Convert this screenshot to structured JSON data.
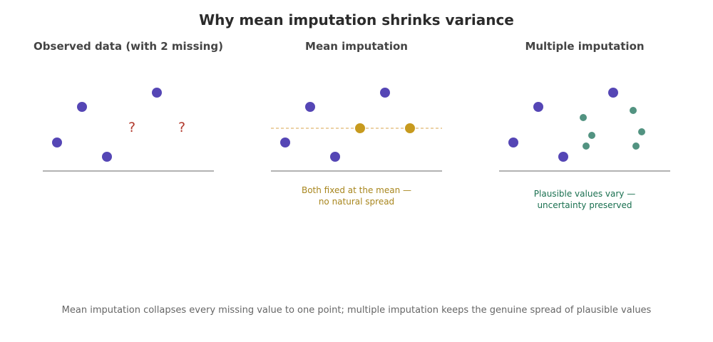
{
  "title": "Why mean imputation shrinks variance",
  "panels": {
    "observed": {
      "title": "Observed data (with 2 missing)",
      "missing_marker": "?"
    },
    "mean": {
      "title": "Mean imputation",
      "caption": "Both fixed at the mean —\nno natural spread"
    },
    "multiple": {
      "title": "Multiple imputation",
      "caption": "Plausible values vary —\nuncertainty preserved"
    }
  },
  "footer": "Mean imputation collapses every missing value to one point; multiple imputation keeps the genuine spread of plausible values",
  "colors": {
    "observed_point": "#5546b5",
    "mean_imputed": "#c79a1e",
    "mean_line": "#e0b870",
    "multiple_imputed": "#529381",
    "missing_marker": "#b23a2e",
    "baseline": "#999999",
    "mean_caption": "#a8861e",
    "multiple_caption": "#1a7050"
  }
}
